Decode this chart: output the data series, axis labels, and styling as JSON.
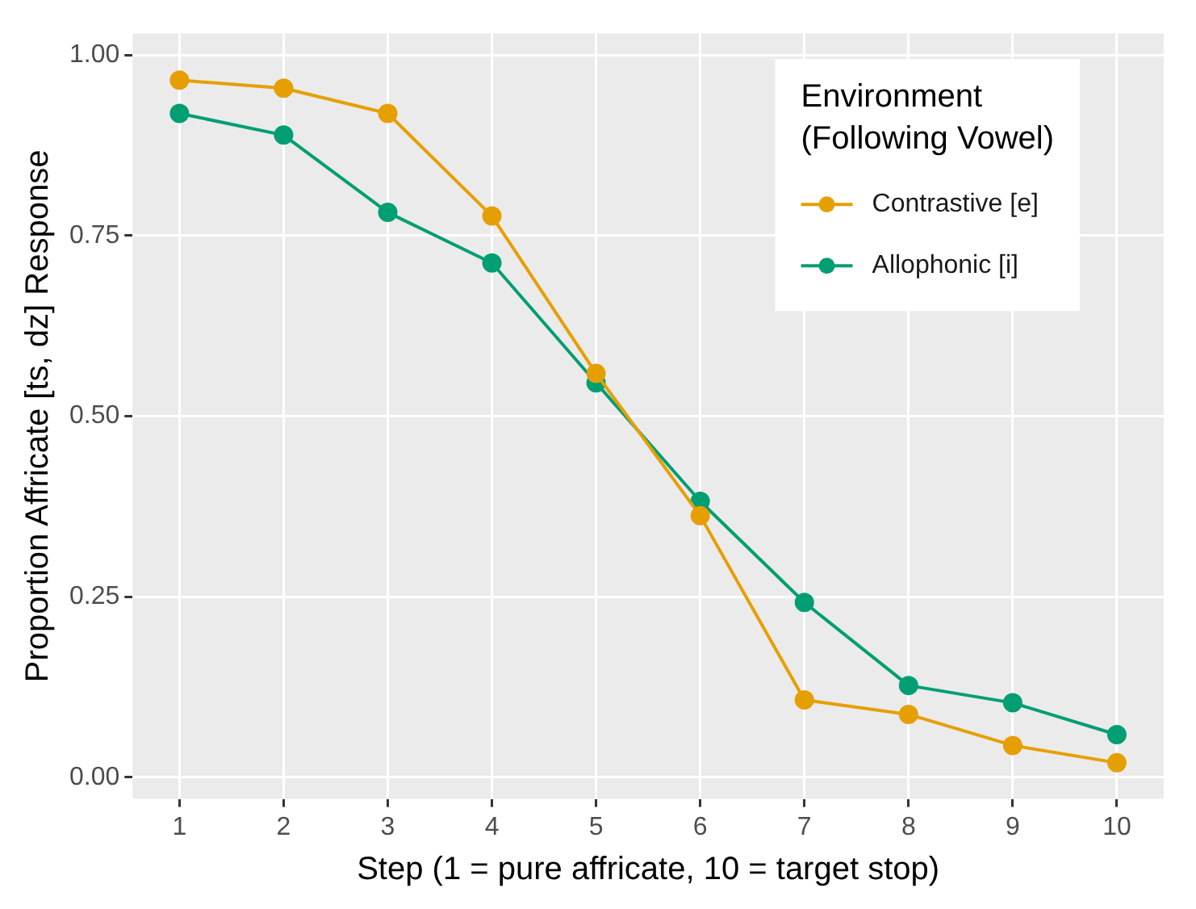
{
  "chart_data": {
    "type": "line",
    "xlabel": "Step (1 = pure affricate, 10 = target stop)",
    "ylabel": "Proportion Affricate [ts, dz] Response",
    "legend_title": "Environment\n(Following Vowel)",
    "x": [
      1,
      2,
      3,
      4,
      5,
      6,
      7,
      8,
      9,
      10
    ],
    "xlim": [
      0.55,
      10.45
    ],
    "xticks": [
      1,
      2,
      3,
      4,
      5,
      6,
      7,
      8,
      9,
      10
    ],
    "ylim": [
      -0.03,
      1.03
    ],
    "yticks": [
      {
        "value": 0,
        "label": "0.00"
      },
      {
        "value": 0.25,
        "label": "0.25"
      },
      {
        "value": 0.5,
        "label": "0.50"
      },
      {
        "value": 0.75,
        "label": "0.75"
      },
      {
        "value": 1,
        "label": "1.00"
      }
    ],
    "series": [
      {
        "name": "Contrastive [e]",
        "color": "#e69f00",
        "values": [
          0.965,
          0.954,
          0.919,
          0.777,
          0.559,
          0.362,
          0.107,
          0.087,
          0.044,
          0.02
        ]
      },
      {
        "name": "Allophonic [i]",
        "color": "#009e73",
        "values": [
          0.919,
          0.889,
          0.782,
          0.712,
          0.546,
          0.382,
          0.242,
          0.127,
          0.103,
          0.059
        ]
      }
    ],
    "grid": true,
    "legend": "top right",
    "marker": "circle",
    "line_style": "solid"
  }
}
